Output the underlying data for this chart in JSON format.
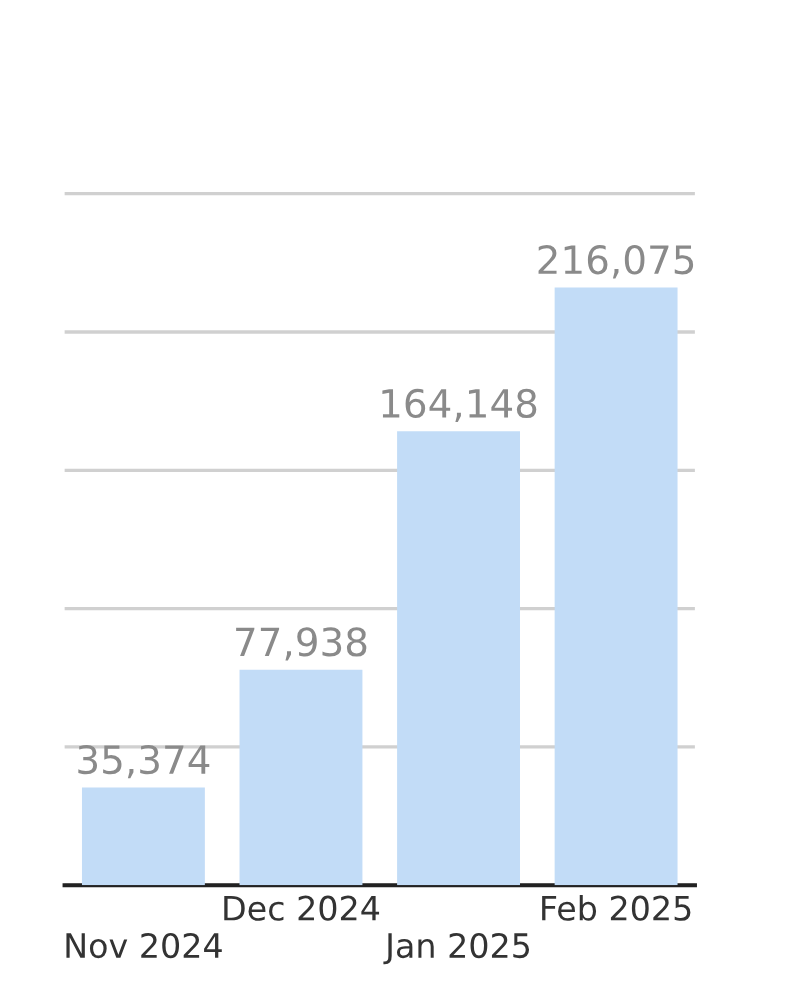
{
  "chart_data": {
    "type": "bar",
    "categories": [
      "Nov 2024",
      "Dec 2024",
      "Jan 2025",
      "Feb 2025"
    ],
    "values": [
      35374,
      77938,
      164148,
      216075
    ],
    "value_labels": [
      "35,374",
      "77,938",
      "164,148",
      "216,075"
    ],
    "color": "#c2dcf7",
    "tick_labels": "x",
    "grid": "y"
  }
}
